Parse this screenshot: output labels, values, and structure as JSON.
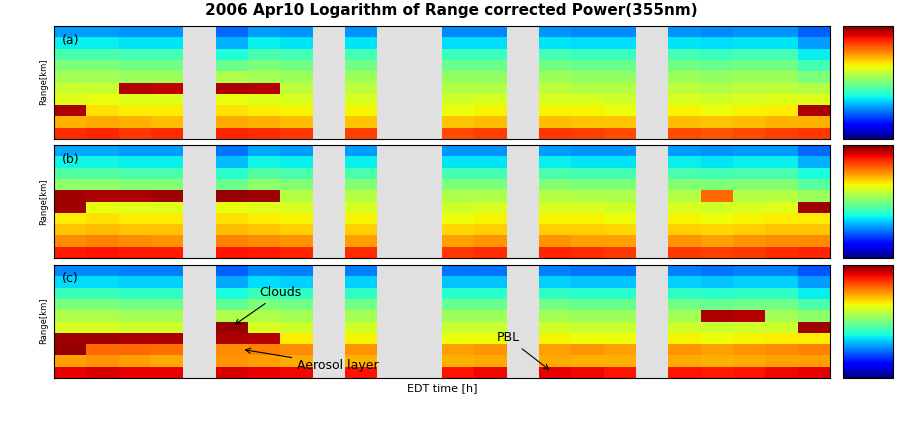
{
  "chart_data": {
    "type": "heatmap",
    "title": "2006 Apr10 Logarithm of Range corrected Power(355nm)",
    "x_label": "EDT time [h]",
    "y_label": "Range[km]",
    "tick_labels": false,
    "xlim": [
      8,
      20
    ],
    "colorbar_range": [
      0,
      10
    ],
    "panels": [
      {
        "label": "(a)",
        "ylim": [
          0,
          10
        ],
        "cells": [
          [
            8.6,
            8.7,
            8.5,
            8.6,
            null,
            8.7,
            8.6,
            8.5,
            null,
            8.4,
            null,
            null,
            8.3,
            8.4,
            null,
            8.5,
            8.4,
            8.3,
            null,
            8.3,
            8.2,
            8.3,
            8.4,
            8.5
          ],
          [
            7.2,
            7.3,
            7.2,
            7.1,
            null,
            7.3,
            7.2,
            7.1,
            null,
            7.0,
            null,
            null,
            7.0,
            7.1,
            null,
            7.1,
            7.0,
            7.0,
            null,
            7.1,
            7.0,
            7.1,
            7.2,
            7.2
          ],
          [
            9.6,
            6.7,
            6.6,
            6.6,
            null,
            6.7,
            6.6,
            6.5,
            null,
            6.5,
            null,
            null,
            6.4,
            6.5,
            null,
            6.5,
            6.5,
            6.4,
            null,
            6.5,
            6.4,
            6.5,
            6.6,
            9.6
          ],
          [
            6.2,
            6.3,
            6.2,
            6.2,
            null,
            6.3,
            6.2,
            6.1,
            null,
            6.1,
            null,
            null,
            6.0,
            6.1,
            null,
            6.1,
            6.1,
            6.0,
            null,
            6.1,
            6.0,
            6.1,
            6.2,
            6.2
          ],
          [
            5.9,
            5.9,
            9.5,
            9.4,
            null,
            9.6,
            9.5,
            5.8,
            null,
            5.8,
            null,
            null,
            5.7,
            5.7,
            null,
            5.8,
            5.7,
            5.7,
            null,
            5.8,
            5.7,
            5.8,
            5.8,
            5.7
          ],
          [
            5.5,
            5.5,
            5.4,
            5.4,
            null,
            5.6,
            5.5,
            5.4,
            null,
            5.4,
            null,
            null,
            5.3,
            5.3,
            null,
            5.4,
            5.3,
            5.3,
            null,
            5.4,
            5.3,
            5.4,
            5.4,
            5.0
          ],
          [
            5.0,
            5.0,
            4.9,
            4.9,
            null,
            4.8,
            5.0,
            4.9,
            null,
            4.9,
            null,
            null,
            4.8,
            4.8,
            null,
            4.9,
            4.8,
            4.8,
            null,
            4.9,
            4.8,
            4.9,
            4.9,
            4.3
          ],
          [
            4.4,
            4.4,
            4.3,
            4.3,
            null,
            3.9,
            4.4,
            4.3,
            null,
            4.3,
            null,
            null,
            4.2,
            4.2,
            null,
            4.3,
            4.2,
            4.2,
            null,
            4.3,
            4.2,
            4.3,
            4.3,
            3.6
          ],
          [
            3.6,
            3.6,
            3.5,
            3.5,
            null,
            3.0,
            3.6,
            3.5,
            null,
            3.5,
            null,
            null,
            3.4,
            3.4,
            null,
            3.5,
            3.4,
            3.4,
            null,
            3.5,
            3.4,
            3.5,
            3.5,
            2.8
          ],
          [
            2.8,
            2.8,
            2.7,
            2.7,
            null,
            2.3,
            2.8,
            2.7,
            null,
            2.7,
            null,
            null,
            2.6,
            2.6,
            null,
            2.7,
            2.6,
            2.6,
            null,
            2.7,
            2.6,
            2.7,
            2.7,
            2.2
          ]
        ]
      },
      {
        "label": "(b)",
        "ylim": [
          0,
          10
        ],
        "cells": [
          [
            8.8,
            8.9,
            8.8,
            8.8,
            null,
            8.9,
            8.8,
            8.7,
            null,
            8.6,
            null,
            null,
            8.5,
            8.6,
            null,
            8.7,
            8.6,
            8.5,
            null,
            8.5,
            8.4,
            8.5,
            8.6,
            8.7
          ],
          [
            7.6,
            7.7,
            7.6,
            7.5,
            null,
            7.7,
            7.6,
            7.5,
            null,
            7.4,
            null,
            null,
            7.4,
            7.5,
            null,
            7.5,
            7.4,
            7.4,
            null,
            7.5,
            7.4,
            7.5,
            7.6,
            7.6
          ],
          [
            7.0,
            7.1,
            7.0,
            7.0,
            null,
            7.1,
            7.0,
            6.9,
            null,
            6.9,
            null,
            null,
            6.8,
            6.9,
            null,
            6.9,
            6.9,
            6.8,
            null,
            6.9,
            6.8,
            6.9,
            7.0,
            7.0
          ],
          [
            6.6,
            6.7,
            6.6,
            6.6,
            null,
            6.7,
            6.6,
            6.5,
            null,
            6.5,
            null,
            null,
            6.4,
            6.5,
            null,
            6.5,
            6.5,
            6.4,
            null,
            6.5,
            6.4,
            6.5,
            6.6,
            6.6
          ],
          [
            9.7,
            6.3,
            6.2,
            6.2,
            null,
            6.3,
            6.2,
            6.1,
            null,
            6.1,
            null,
            null,
            6.0,
            6.1,
            null,
            6.1,
            6.1,
            6.0,
            null,
            6.1,
            6.0,
            6.1,
            6.2,
            9.7
          ],
          [
            9.7,
            9.6,
            9.6,
            9.7,
            null,
            9.8,
            9.7,
            5.7,
            null,
            5.7,
            null,
            null,
            5.6,
            5.6,
            null,
            5.7,
            5.6,
            5.6,
            null,
            5.7,
            8.0,
            5.7,
            5.7,
            5.4
          ],
          [
            5.2,
            5.2,
            5.1,
            5.1,
            null,
            4.8,
            5.2,
            5.1,
            null,
            5.1,
            null,
            null,
            5.0,
            5.0,
            null,
            5.1,
            5.0,
            5.0,
            null,
            5.1,
            5.0,
            5.1,
            5.1,
            4.6
          ],
          [
            4.5,
            4.5,
            4.4,
            4.4,
            null,
            4.0,
            4.5,
            4.4,
            null,
            4.4,
            null,
            null,
            4.3,
            4.3,
            null,
            4.4,
            4.3,
            4.3,
            null,
            4.4,
            4.3,
            4.4,
            4.4,
            3.8
          ],
          [
            3.7,
            3.7,
            3.6,
            3.6,
            null,
            3.1,
            3.7,
            3.6,
            null,
            3.6,
            null,
            null,
            3.5,
            3.5,
            null,
            3.6,
            3.5,
            3.5,
            null,
            3.6,
            3.5,
            3.6,
            3.6,
            3.0
          ],
          [
            2.9,
            2.9,
            2.8,
            2.8,
            null,
            2.4,
            2.9,
            2.8,
            null,
            2.8,
            null,
            null,
            2.7,
            2.7,
            null,
            2.8,
            2.7,
            2.7,
            null,
            2.8,
            2.7,
            2.8,
            2.8,
            2.3
          ]
        ]
      },
      {
        "label": "(c)",
        "ylim": [
          0,
          10
        ],
        "cells": [
          [
            9.1,
            9.2,
            9.1,
            9.1,
            null,
            9.2,
            9.1,
            9.0,
            null,
            8.9,
            null,
            null,
            8.9,
            9.0,
            null,
            9.1,
            9.0,
            8.9,
            null,
            8.9,
            8.8,
            8.9,
            9.0,
            9.1
          ],
          [
            7.4,
            7.5,
            7.4,
            7.3,
            null,
            7.5,
            7.4,
            7.3,
            null,
            7.2,
            null,
            null,
            7.2,
            7.3,
            null,
            7.3,
            7.2,
            7.2,
            null,
            7.3,
            7.2,
            7.3,
            7.4,
            7.4
          ],
          [
            9.8,
            8.0,
            8.0,
            7.9,
            null,
            7.6,
            7.7,
            7.6,
            null,
            7.5,
            null,
            null,
            7.4,
            7.5,
            null,
            7.4,
            7.5,
            7.4,
            null,
            7.5,
            7.4,
            7.5,
            7.6,
            7.7
          ],
          [
            9.7,
            9.7,
            9.6,
            9.6,
            null,
            9.6,
            9.5,
            6.6,
            null,
            6.5,
            null,
            null,
            6.4,
            6.4,
            null,
            6.5,
            6.4,
            6.4,
            null,
            6.5,
            6.4,
            6.5,
            6.6,
            6.6
          ],
          [
            6.1,
            6.1,
            6.0,
            6.0,
            null,
            9.8,
            6.1,
            6.0,
            null,
            6.0,
            null,
            null,
            5.9,
            5.9,
            null,
            6.0,
            5.9,
            5.9,
            null,
            6.0,
            5.9,
            6.0,
            6.0,
            9.7
          ],
          [
            5.6,
            5.6,
            5.5,
            5.5,
            null,
            5.6,
            5.6,
            5.5,
            null,
            5.5,
            null,
            null,
            5.4,
            5.4,
            null,
            5.5,
            5.4,
            5.4,
            null,
            5.5,
            9.6,
            9.5,
            5.5,
            5.2
          ],
          [
            5.0,
            5.0,
            4.9,
            4.9,
            null,
            4.7,
            5.0,
            4.9,
            null,
            4.9,
            null,
            null,
            4.8,
            4.8,
            null,
            4.9,
            4.8,
            4.8,
            null,
            4.9,
            4.8,
            4.9,
            4.9,
            4.4
          ],
          [
            4.2,
            4.2,
            4.1,
            4.1,
            null,
            3.8,
            4.2,
            4.1,
            null,
            4.1,
            null,
            null,
            4.0,
            4.0,
            null,
            4.1,
            4.0,
            4.0,
            null,
            4.1,
            4.0,
            4.1,
            4.1,
            3.6
          ],
          [
            3.4,
            3.4,
            3.3,
            3.3,
            null,
            2.9,
            3.4,
            3.3,
            null,
            3.3,
            null,
            null,
            3.2,
            3.2,
            null,
            3.3,
            3.2,
            3.2,
            null,
            3.3,
            3.2,
            3.3,
            3.3,
            2.8
          ],
          [
            2.6,
            2.6,
            2.5,
            2.5,
            null,
            2.2,
            2.6,
            2.5,
            null,
            2.5,
            null,
            null,
            2.4,
            2.4,
            null,
            2.5,
            2.4,
            2.4,
            null,
            2.5,
            2.4,
            2.5,
            2.5,
            2.1
          ]
        ],
        "annotations": [
          {
            "text": "Clouds",
            "x": 10.75,
            "y": 4.5
          },
          {
            "text": "Aerosol layer",
            "x": 10.9,
            "y": 2.5
          },
          {
            "text": "PBL",
            "x": 15.7,
            "y": 0.5
          }
        ]
      }
    ]
  }
}
